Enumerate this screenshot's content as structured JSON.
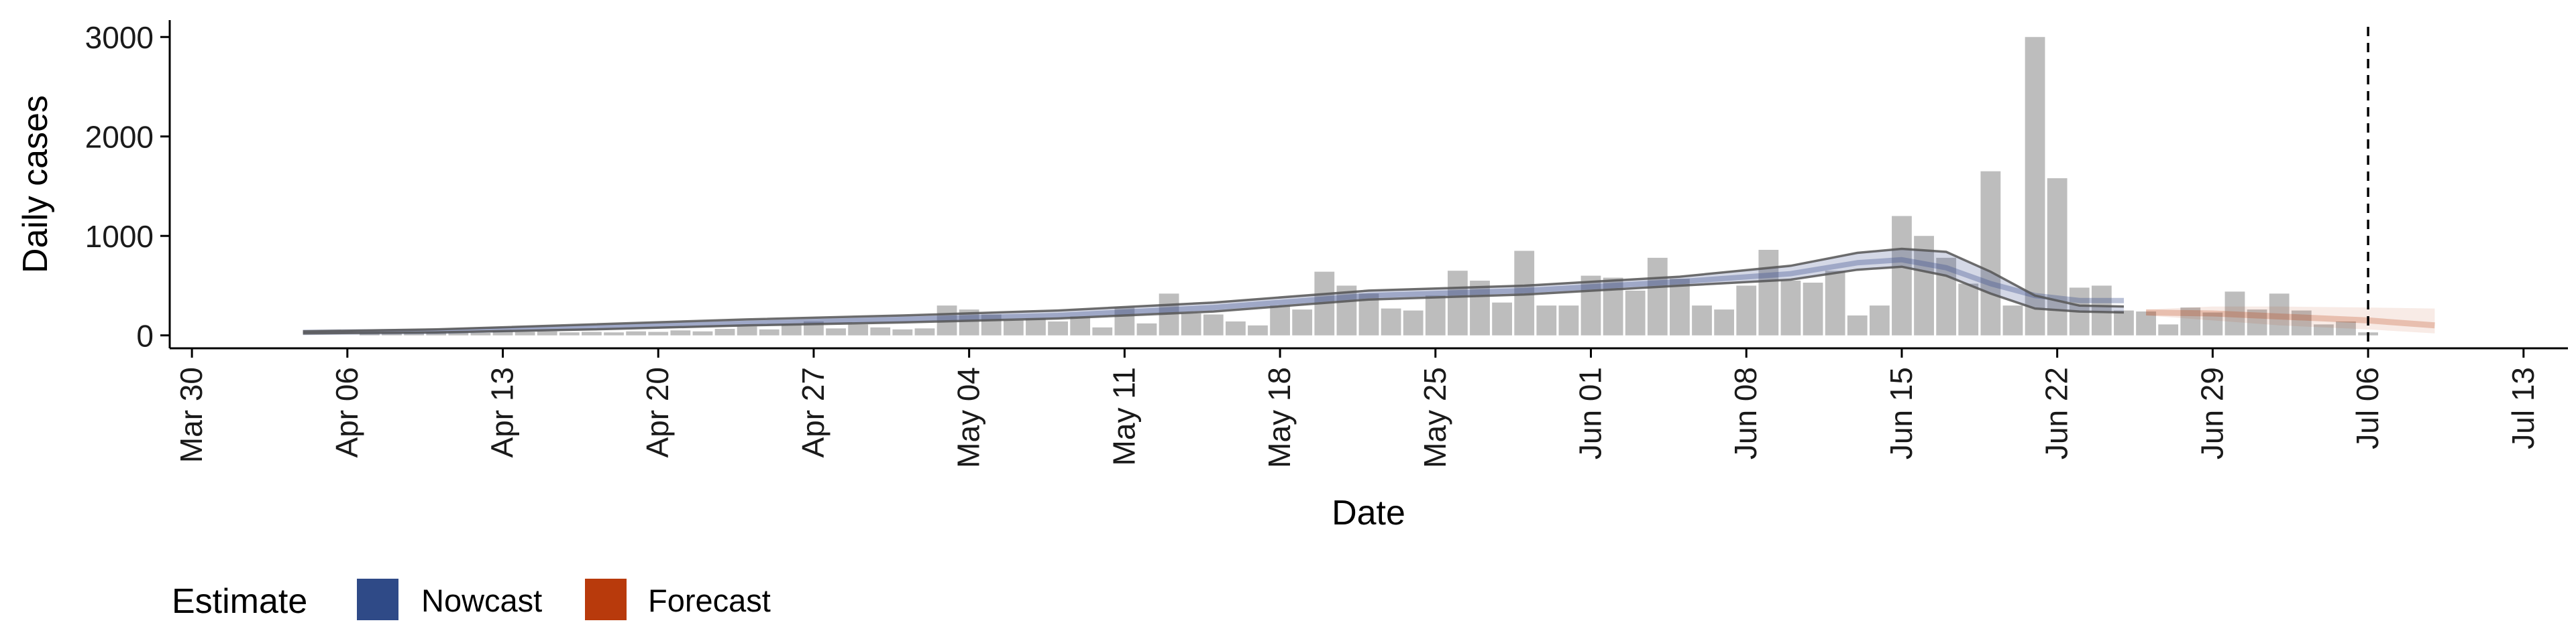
{
  "chart_data": {
    "type": "bar",
    "title": "",
    "xlabel": "Date",
    "ylabel": "Daily cases",
    "x_tick_labels": [
      "Mar 30",
      "Apr 06",
      "Apr 13",
      "Apr 20",
      "Apr 27",
      "May 04",
      "May 11",
      "May 18",
      "May 25",
      "Jun 01",
      "Jun 08",
      "Jun 15",
      "Jun 22",
      "Jun 29",
      "Jul 06",
      "Jul 13"
    ],
    "x_ticks": [
      "2020-03-30",
      "2020-04-06",
      "2020-04-13",
      "2020-04-20",
      "2020-04-27",
      "2020-05-04",
      "2020-05-11",
      "2020-05-18",
      "2020-05-25",
      "2020-06-01",
      "2020-06-08",
      "2020-06-15",
      "2020-06-22",
      "2020-06-29",
      "2020-07-06",
      "2020-07-13"
    ],
    "y_ticks": [
      0,
      1000,
      2000,
      3000
    ],
    "y_tick_labels": [
      "0",
      "1000",
      "2000",
      "3000"
    ],
    "xlim": [
      "2020-03-29",
      "2020-07-15"
    ],
    "ylim": [
      -130,
      3170
    ],
    "grid": false,
    "vline": "2020-07-06",
    "bar_color": "#bdbdbd",
    "bars": {
      "x": [
        "2020-04-07",
        "2020-04-08",
        "2020-04-09",
        "2020-04-10",
        "2020-04-11",
        "2020-04-12",
        "2020-04-13",
        "2020-04-14",
        "2020-04-15",
        "2020-04-16",
        "2020-04-17",
        "2020-04-18",
        "2020-04-19",
        "2020-04-20",
        "2020-04-21",
        "2020-04-22",
        "2020-04-23",
        "2020-04-24",
        "2020-04-25",
        "2020-04-26",
        "2020-04-27",
        "2020-04-28",
        "2020-04-29",
        "2020-04-30",
        "2020-05-01",
        "2020-05-02",
        "2020-05-03",
        "2020-05-04",
        "2020-05-05",
        "2020-05-06",
        "2020-05-07",
        "2020-05-08",
        "2020-05-09",
        "2020-05-10",
        "2020-05-11",
        "2020-05-12",
        "2020-05-13",
        "2020-05-14",
        "2020-05-15",
        "2020-05-16",
        "2020-05-17",
        "2020-05-18",
        "2020-05-19",
        "2020-05-20",
        "2020-05-21",
        "2020-05-22",
        "2020-05-23",
        "2020-05-24",
        "2020-05-25",
        "2020-05-26",
        "2020-05-27",
        "2020-05-28",
        "2020-05-29",
        "2020-05-30",
        "2020-05-31",
        "2020-06-01",
        "2020-06-02",
        "2020-06-03",
        "2020-06-04",
        "2020-06-05",
        "2020-06-06",
        "2020-06-07",
        "2020-06-08",
        "2020-06-09",
        "2020-06-10",
        "2020-06-11",
        "2020-06-12",
        "2020-06-13",
        "2020-06-14",
        "2020-06-15",
        "2020-06-16",
        "2020-06-17",
        "2020-06-18",
        "2020-06-19",
        "2020-06-20",
        "2020-06-21",
        "2020-06-22",
        "2020-06-23",
        "2020-06-24",
        "2020-06-25",
        "2020-06-26",
        "2020-06-27",
        "2020-06-28",
        "2020-06-29",
        "2020-06-30",
        "2020-07-01",
        "2020-07-02",
        "2020-07-03",
        "2020-07-04",
        "2020-07-05",
        "2020-07-06"
      ],
      "values": [
        30,
        25,
        30,
        40,
        35,
        25,
        45,
        35,
        40,
        30,
        35,
        30,
        40,
        35,
        50,
        40,
        65,
        90,
        60,
        110,
        140,
        70,
        110,
        80,
        60,
        70,
        300,
        260,
        210,
        150,
        170,
        140,
        190,
        80,
        280,
        120,
        420,
        220,
        210,
        140,
        100,
        300,
        260,
        640,
        500,
        420,
        270,
        250,
        400,
        650,
        550,
        330,
        850,
        300,
        300,
        600,
        580,
        450,
        780,
        570,
        300,
        260,
        500,
        860,
        550,
        530,
        650,
        200,
        300,
        1200,
        1000,
        780,
        520,
        1650,
        300,
        3000,
        1580,
        480,
        500,
        250,
        240,
        110,
        280,
        230,
        440,
        260,
        420,
        250,
        110,
        140,
        30
      ]
    },
    "series": [
      {
        "name": "Nowcast",
        "color": "#3c4f8c",
        "x": [
          "2020-04-04",
          "2020-04-10",
          "2020-04-17",
          "2020-04-24",
          "2020-05-01",
          "2020-05-08",
          "2020-05-15",
          "2020-05-22",
          "2020-05-29",
          "2020-06-05",
          "2020-06-10",
          "2020-06-13",
          "2020-06-15",
          "2020-06-17",
          "2020-06-19",
          "2020-06-21",
          "2020-06-23",
          "2020-06-25"
        ],
        "values": [
          30,
          40,
          80,
          120,
          160,
          200,
          280,
          400,
          450,
          540,
          620,
          730,
          760,
          680,
          520,
          400,
          350,
          350
        ],
        "lower": [
          20,
          30,
          60,
          100,
          130,
          170,
          240,
          360,
          410,
          500,
          560,
          660,
          690,
          600,
          420,
          270,
          240,
          230
        ],
        "upper": [
          40,
          60,
          110,
          160,
          200,
          250,
          330,
          450,
          500,
          590,
          700,
          830,
          870,
          840,
          640,
          400,
          300,
          290
        ]
      },
      {
        "name": "Forecast",
        "color": "#b83a0c",
        "x": [
          "2020-06-26",
          "2020-06-29",
          "2020-07-02",
          "2020-07-06",
          "2020-07-09"
        ],
        "values": [
          230,
          220,
          190,
          150,
          100
        ],
        "lower": [
          200,
          150,
          100,
          60,
          20
        ],
        "upper": [
          260,
          290,
          290,
          280,
          270
        ]
      }
    ],
    "legend": {
      "title": "Estimate",
      "position": "bottom-left",
      "items": [
        {
          "label": "Nowcast",
          "color": "#2f4a87"
        },
        {
          "label": "Forecast",
          "color": "#b83a0c"
        }
      ]
    }
  }
}
